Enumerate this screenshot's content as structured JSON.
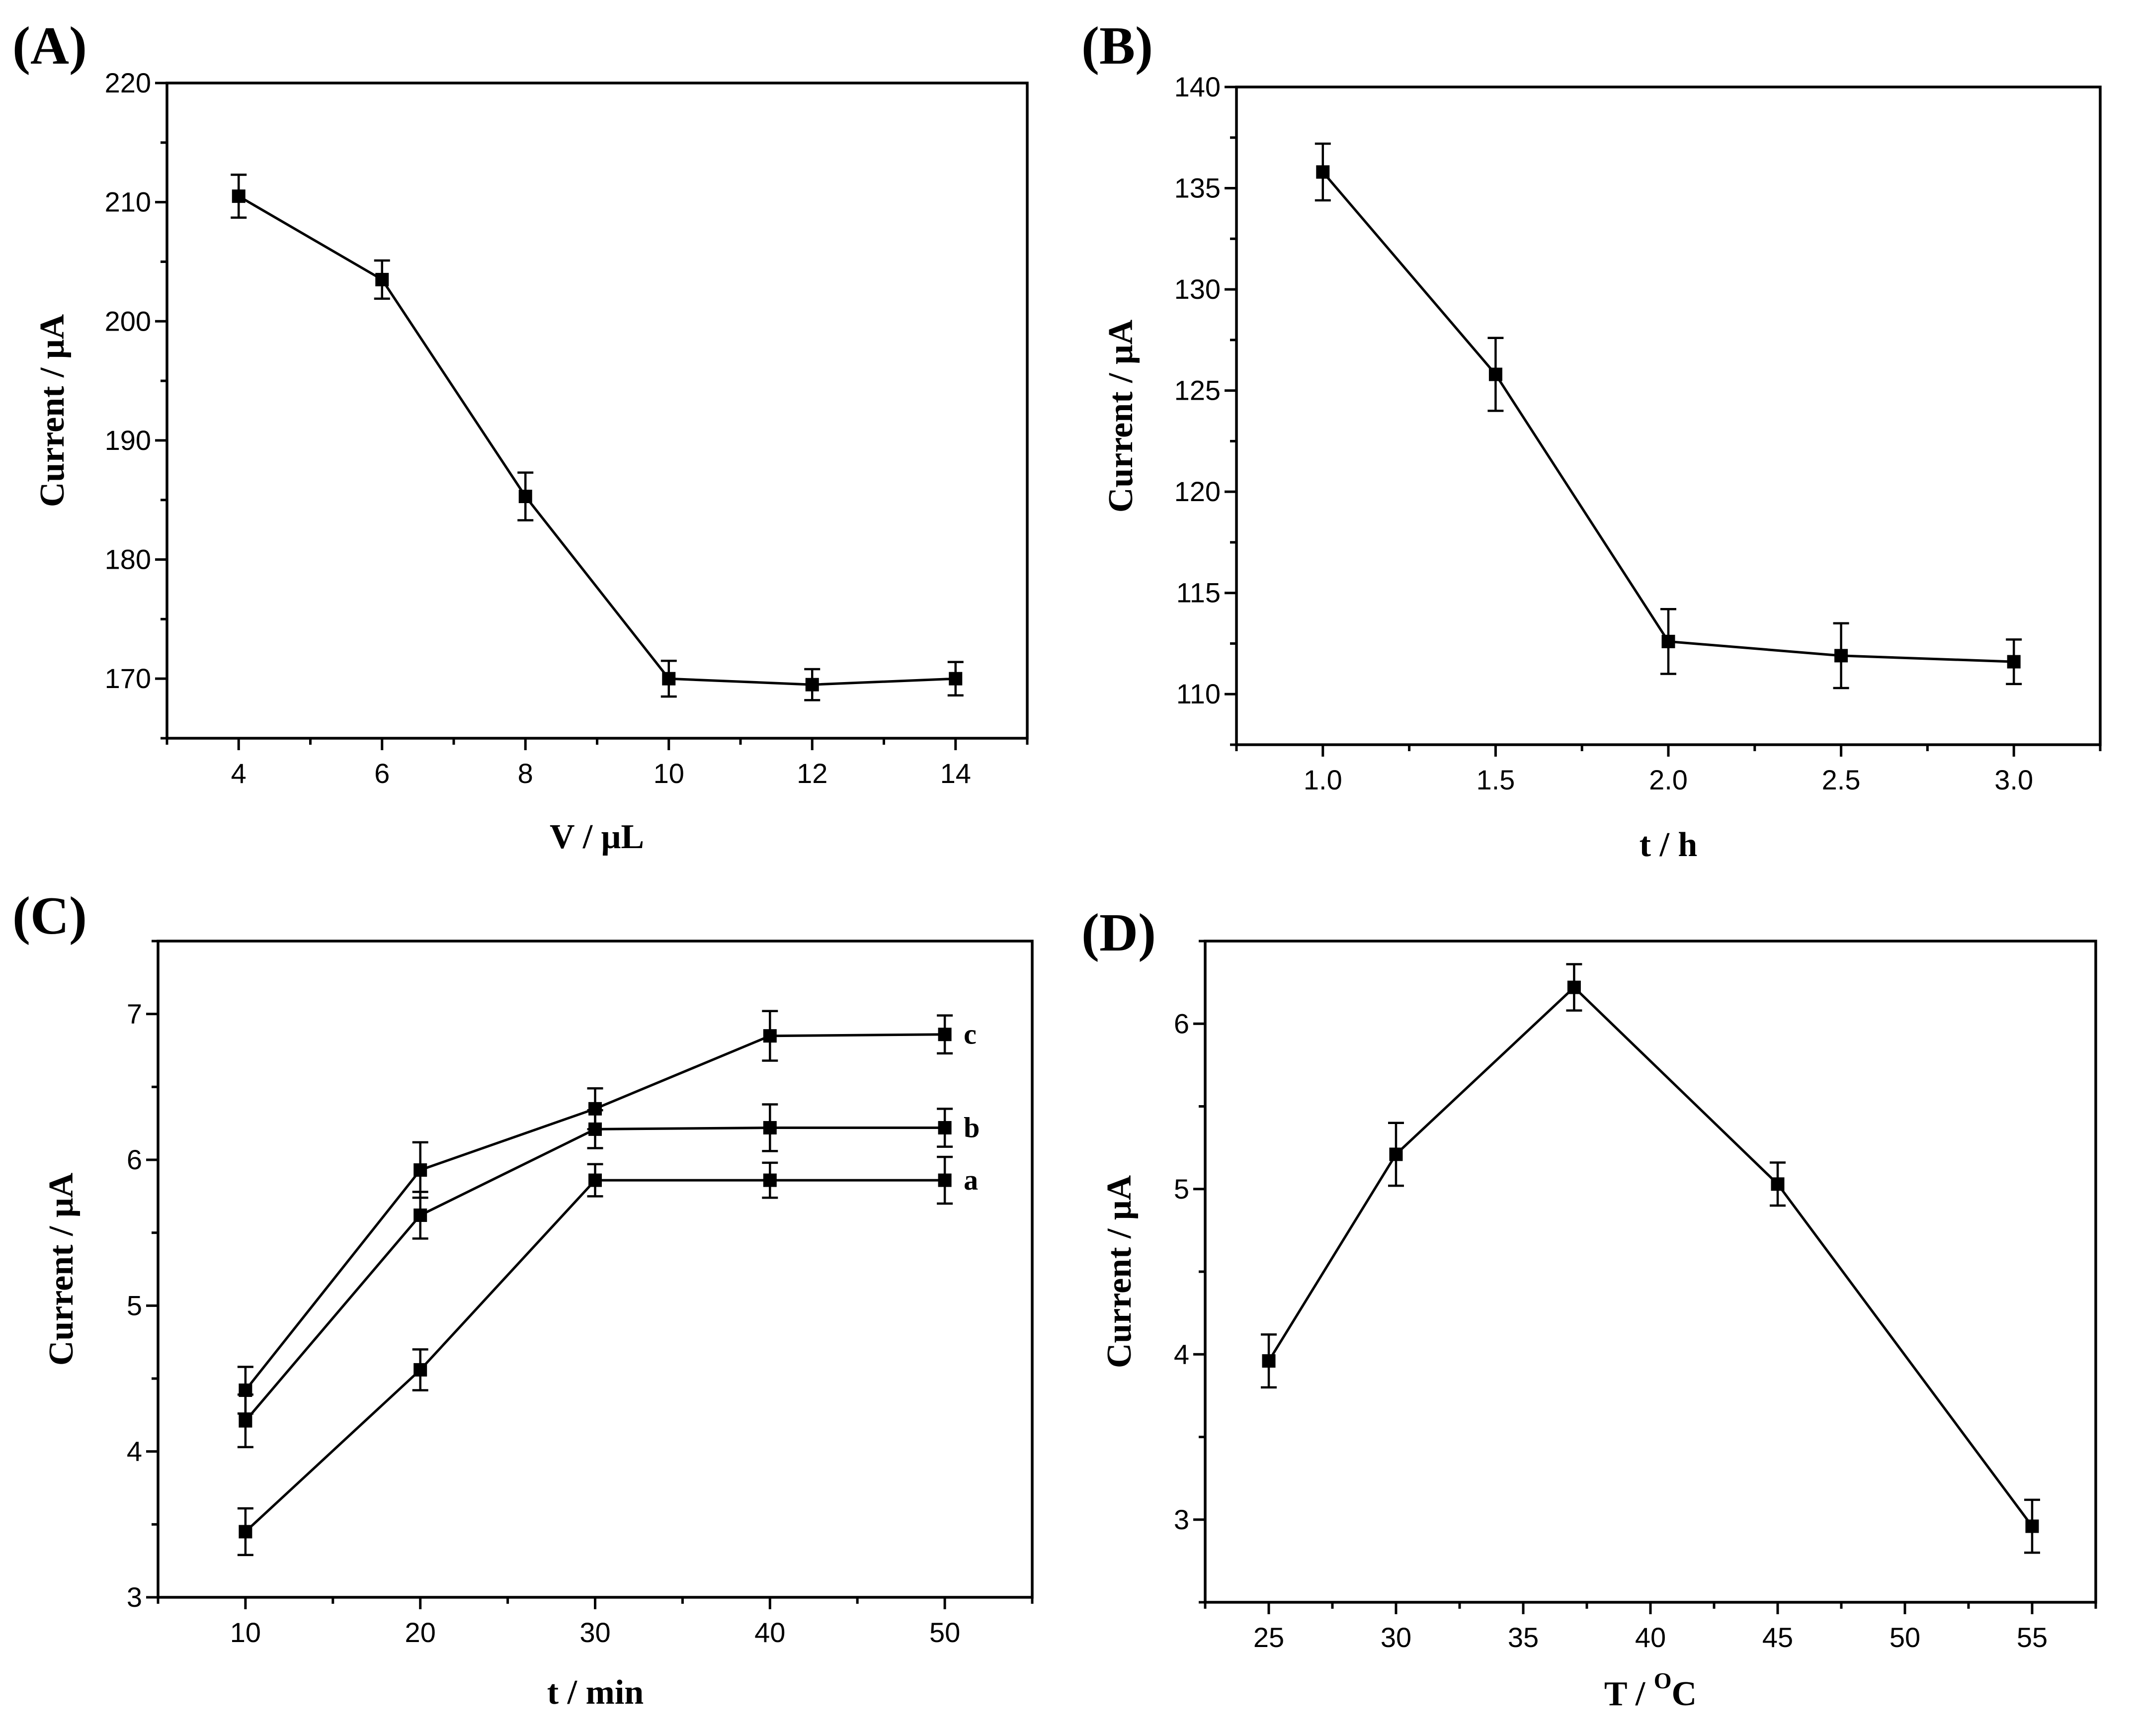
{
  "chart_data": [
    {
      "type": "line",
      "panel_label": "(A)",
      "xlabel": "V / μL",
      "ylabel": "Current / μA",
      "xlim": [
        3,
        15
      ],
      "ylim": [
        165,
        220
      ],
      "xticks": [
        4,
        6,
        8,
        10,
        12,
        14
      ],
      "xtick_labels": [
        "4",
        "6",
        "8",
        "10",
        "12",
        "14"
      ],
      "yticks": [
        170,
        180,
        190,
        200,
        210,
        220
      ],
      "ytick_labels": [
        "170",
        "180",
        "190",
        "200",
        "210",
        "220"
      ],
      "series": [
        {
          "name": "",
          "x": [
            4,
            6,
            8,
            10,
            12,
            14
          ],
          "values": [
            210.5,
            203.5,
            185.3,
            170.0,
            169.5,
            170.0
          ],
          "errors": [
            1.8,
            1.6,
            2.0,
            1.5,
            1.3,
            1.4
          ]
        }
      ]
    },
    {
      "type": "line",
      "panel_label": "(B)",
      "xlabel": "t / h",
      "ylabel": "Current / μA",
      "xlim": [
        0.75,
        3.25
      ],
      "ylim": [
        107.5,
        140
      ],
      "xticks": [
        1.0,
        1.5,
        2.0,
        2.5,
        3.0
      ],
      "xtick_labels": [
        "1.0",
        "1.5",
        "2.0",
        "2.5",
        "3.0"
      ],
      "yticks": [
        110,
        115,
        120,
        125,
        130,
        135,
        140
      ],
      "ytick_labels": [
        "110",
        "115",
        "120",
        "125",
        "130",
        "135",
        "140"
      ],
      "series": [
        {
          "name": "",
          "x": [
            1.0,
            1.5,
            2.0,
            2.5,
            3.0
          ],
          "values": [
            135.8,
            125.8,
            112.6,
            111.9,
            111.6
          ],
          "errors": [
            1.4,
            1.8,
            1.6,
            1.6,
            1.1
          ]
        }
      ]
    },
    {
      "type": "line",
      "panel_label": "(C)",
      "xlabel": "t / min",
      "ylabel": "Current / μA",
      "xlim": [
        5,
        55
      ],
      "ylim": [
        3,
        7.5
      ],
      "xticks": [
        10,
        20,
        30,
        40,
        50
      ],
      "xtick_labels": [
        "10",
        "20",
        "30",
        "40",
        "50"
      ],
      "yticks": [
        3,
        4,
        5,
        6,
        7
      ],
      "ytick_labels": [
        "3",
        "4",
        "5",
        "6",
        "7"
      ],
      "series": [
        {
          "name": "a",
          "x": [
            10,
            20,
            30,
            40,
            50
          ],
          "values": [
            3.45,
            4.56,
            5.86,
            5.86,
            5.86
          ],
          "errors": [
            0.16,
            0.14,
            0.11,
            0.12,
            0.16
          ]
        },
        {
          "name": "b",
          "x": [
            10,
            20,
            30,
            40,
            50
          ],
          "values": [
            4.21,
            5.62,
            6.21,
            6.22,
            6.22
          ],
          "errors": [
            0.18,
            0.16,
            0.13,
            0.16,
            0.13
          ]
        },
        {
          "name": "c",
          "x": [
            10,
            20,
            30,
            40,
            50
          ],
          "values": [
            4.42,
            5.93,
            6.35,
            6.85,
            6.86
          ],
          "errors": [
            0.16,
            0.19,
            0.14,
            0.17,
            0.13
          ]
        }
      ]
    },
    {
      "type": "line",
      "panel_label": "(D)",
      "xlabel_main": "T / ",
      "xlabel_sup": "O",
      "xlabel_end": "C",
      "ylabel": "Current / μA",
      "xlim": [
        22.5,
        57.5
      ],
      "ylim": [
        2.5,
        6.5
      ],
      "xticks": [
        25,
        30,
        35,
        40,
        45,
        50,
        55
      ],
      "xtick_labels": [
        "25",
        "30",
        "35",
        "40",
        "45",
        "50",
        "55"
      ],
      "yticks": [
        3,
        4,
        5,
        6
      ],
      "ytick_labels": [
        "3",
        "4",
        "5",
        "6"
      ],
      "series": [
        {
          "name": "",
          "x": [
            25,
            30,
            37,
            45,
            55
          ],
          "values": [
            3.96,
            5.21,
            6.22,
            5.03,
            2.96
          ],
          "errors": [
            0.16,
            0.19,
            0.14,
            0.13,
            0.16
          ]
        }
      ]
    }
  ]
}
